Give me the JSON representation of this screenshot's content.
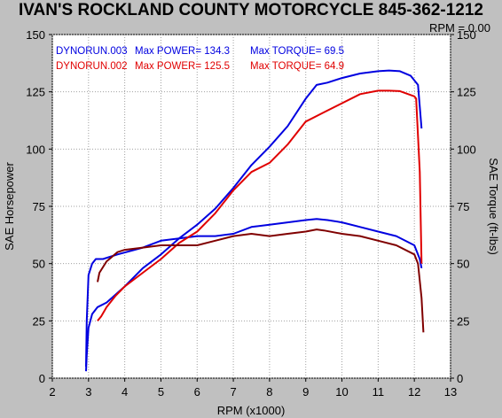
{
  "chart_data": {
    "type": "line",
    "title": "IVAN'S ROCKLAND COUNTY MOTORCYCLE 845-362-1212",
    "rpm_readout": "RPM = 0.00",
    "xlabel": "RPM (x1000)",
    "ylabel_left": "SAE Horsepower",
    "ylabel_right": "SAE Torque (ft-lbs)",
    "xlim": [
      2,
      13
    ],
    "ylim_left": [
      0,
      150
    ],
    "ylim_right": [
      0,
      150
    ],
    "x_ticks": [
      "2",
      "3",
      "4",
      "5",
      "6",
      "7",
      "8",
      "9",
      "10",
      "11",
      "12",
      "13"
    ],
    "y_ticks_left": [
      "0",
      "25",
      "50",
      "75",
      "100",
      "125",
      "150"
    ],
    "y_ticks_right": [
      "0",
      "25",
      "50",
      "75",
      "100",
      "125",
      "150"
    ],
    "grid": true,
    "legend": [
      {
        "run": "DYNORUN.003",
        "power_text": "Max POWER= 134.3",
        "torque_text": "Max TORQUE= 69.5",
        "color": "#0000e0"
      },
      {
        "run": "DYNORUN.002",
        "power_text": "Max POWER= 125.5",
        "torque_text": "Max TORQUE= 64.9",
        "color": "#e00000"
      }
    ],
    "series": [
      {
        "name": "DYNORUN.003",
        "measure": "power",
        "color": "#0000e0",
        "x": [
          2.93,
          2.95,
          3.0,
          3.1,
          3.25,
          3.5,
          4.0,
          4.5,
          5.0,
          5.5,
          6.0,
          6.5,
          7.0,
          7.5,
          8.0,
          8.5,
          9.0,
          9.3,
          9.6,
          10.0,
          10.5,
          11.0,
          11.3,
          11.6,
          11.9,
          12.1,
          12.2
        ],
        "y": [
          3,
          10,
          22,
          28,
          31,
          33,
          40,
          48,
          54,
          61,
          67,
          74,
          83,
          93,
          101,
          110,
          122,
          128,
          129,
          131,
          133,
          134,
          134.3,
          134,
          132,
          128,
          109
        ]
      },
      {
        "name": "DYNORUN.003",
        "measure": "torque",
        "color": "#0000e0",
        "x": [
          2.93,
          2.95,
          3.0,
          3.1,
          3.2,
          3.4,
          3.8,
          4.5,
          5.0,
          5.5,
          6.0,
          6.5,
          7.0,
          7.5,
          8.0,
          8.5,
          9.0,
          9.3,
          9.6,
          10.0,
          10.5,
          11.0,
          11.5,
          12.0,
          12.15,
          12.2
        ],
        "y": [
          5,
          25,
          45,
          50,
          52,
          52,
          54,
          57,
          60,
          61,
          62,
          62,
          63,
          66,
          67,
          68,
          69,
          69.5,
          69,
          68,
          66,
          64,
          62,
          58,
          52,
          48
        ]
      },
      {
        "name": "DYNORUN.002",
        "measure": "power",
        "color": "#e00000",
        "x": [
          3.25,
          3.35,
          3.5,
          3.75,
          4.0,
          4.5,
          5.0,
          5.5,
          6.0,
          6.5,
          7.0,
          7.5,
          8.0,
          8.5,
          9.0,
          9.5,
          10.0,
          10.5,
          11.0,
          11.3,
          11.6,
          12.0,
          12.05,
          12.15,
          12.2
        ],
        "y": [
          25,
          27,
          31,
          36,
          40,
          46,
          52,
          59,
          64,
          72,
          82,
          90,
          94,
          102,
          112,
          116,
          120,
          124,
          125.5,
          125.5,
          125.3,
          123,
          122,
          90,
          50
        ]
      },
      {
        "name": "DYNORUN.002",
        "measure": "torque",
        "color": "#800000",
        "x": [
          3.25,
          3.3,
          3.5,
          3.8,
          4.0,
          4.5,
          5.0,
          5.5,
          6.0,
          6.5,
          7.0,
          7.5,
          8.0,
          8.5,
          9.0,
          9.3,
          9.5,
          10.0,
          10.5,
          11.0,
          11.5,
          12.0,
          12.1,
          12.2,
          12.25
        ],
        "y": [
          42,
          46,
          51,
          55,
          56,
          57,
          58,
          58,
          58,
          60,
          62,
          63,
          62,
          63,
          64,
          64.9,
          64.5,
          63,
          62,
          60,
          58,
          54,
          50,
          35,
          20
        ]
      }
    ]
  }
}
